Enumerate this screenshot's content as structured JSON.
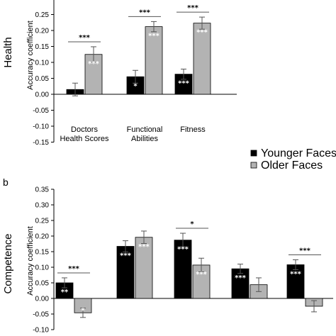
{
  "legend": {
    "entries": [
      {
        "label": "Younger Faces",
        "color": "#000000"
      },
      {
        "label": "Older Faces",
        "color": "#b3b3b3"
      }
    ]
  },
  "chart_data": [
    {
      "type": "bar",
      "panel_label": "",
      "side_label": "Health",
      "ylabel": "Accuracy coefficient",
      "ylim": [
        -0.15,
        0.25
      ],
      "yticks": [
        "0.25",
        "0.20",
        "0.15",
        "0.10",
        "0.05",
        "0.00",
        "-0.05",
        "-0.10",
        "-0.15"
      ],
      "categories": [
        {
          "lines": [
            "Doctors",
            "Health Scores"
          ]
        },
        {
          "lines": [
            "Functional",
            "Abilities"
          ]
        },
        {
          "lines": [
            "Fitness"
          ]
        }
      ],
      "series": [
        {
          "name": "Younger Faces",
          "color": "#000000",
          "values": [
            0.015,
            0.055,
            0.063
          ],
          "errors": [
            0.02,
            0.02,
            0.016
          ],
          "stars": [
            "",
            "*",
            "***"
          ]
        },
        {
          "name": "Older Faces",
          "color": "#b3b3b3",
          "values": [
            0.125,
            0.212,
            0.223
          ],
          "errors": [
            0.024,
            0.016,
            0.019
          ],
          "stars": [
            "***",
            "***",
            "***"
          ]
        }
      ],
      "comparisons": [
        "***",
        "***",
        "***"
      ]
    },
    {
      "type": "bar",
      "panel_label": "b",
      "side_label": "Competence",
      "ylabel": "Accuracy coefficient",
      "ylim": [
        -0.1,
        0.35
      ],
      "yticks": [
        "0.35",
        "0.30",
        "0.25",
        "0.20",
        "0.15",
        "0.10",
        "0.05",
        "0.00",
        "-0.05",
        "-0.10"
      ],
      "categories": [
        {
          "lines": []
        },
        {
          "lines": []
        },
        {
          "lines": []
        },
        {
          "lines": []
        },
        {
          "lines": []
        }
      ],
      "series": [
        {
          "name": "Younger Faces",
          "color": "#000000",
          "values": [
            0.05,
            0.167,
            0.187,
            0.095,
            0.108
          ],
          "errors": [
            0.016,
            0.018,
            0.022,
            0.015,
            0.016
          ],
          "stars": [
            "**",
            "***",
            "***",
            "***",
            "***"
          ]
        },
        {
          "name": "Older Faces",
          "color": "#b3b3b3",
          "values": [
            -0.046,
            0.196,
            0.107,
            0.044,
            -0.025
          ],
          "errors": [
            0.015,
            0.02,
            0.022,
            0.022,
            0.018
          ],
          "stars": [
            "*",
            "***",
            "***",
            "",
            ""
          ]
        }
      ],
      "comparisons": [
        "***",
        "",
        "*",
        "",
        "***"
      ]
    }
  ]
}
